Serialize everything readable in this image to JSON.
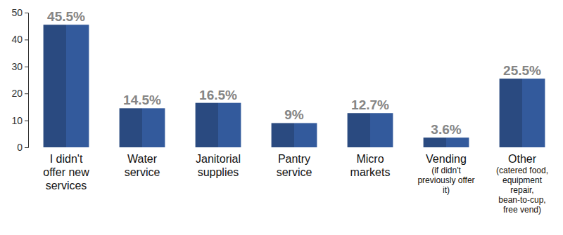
{
  "chart_data": {
    "type": "bar",
    "categories": [
      "I didn't offer new services",
      "Water service",
      "Janitorial supplies",
      "Pantry service",
      "Micro markets",
      "Vending (if didn't previously offer it)",
      "Other (catered food, equipment repair, bean-to-cup, free vend)"
    ],
    "values": [
      45.5,
      14.5,
      16.5,
      9,
      12.7,
      3.6,
      25.5
    ],
    "value_labels": [
      "45.5%",
      "14.5%",
      "16.5%",
      "9%",
      "12.7%",
      "3.6%",
      "25.5%"
    ],
    "color": "#2a4a80",
    "ylim": [
      0,
      50
    ],
    "yticks": [
      0,
      10,
      20,
      30,
      40,
      50
    ],
    "grid": false,
    "data_labels": true
  }
}
